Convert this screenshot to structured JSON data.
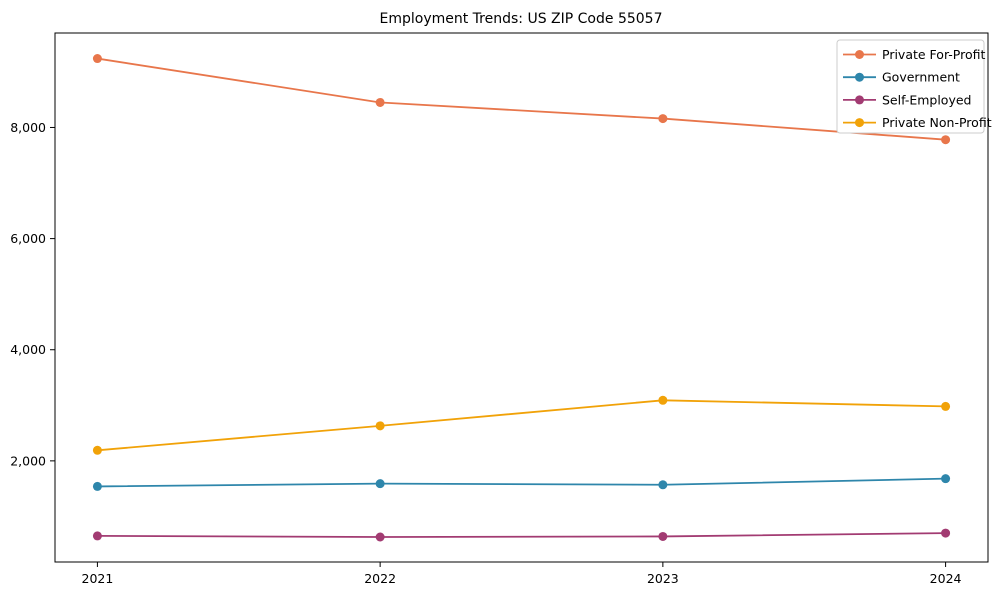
{
  "chart_data": {
    "type": "line",
    "title": "Employment Trends: US ZIP Code 55057",
    "xlabel": "",
    "ylabel": "",
    "x": [
      2021,
      2022,
      2023,
      2024
    ],
    "x_tick_labels": [
      "2021",
      "2022",
      "2023",
      "2024"
    ],
    "yticks": [
      2000,
      4000,
      6000,
      8000
    ],
    "ytick_labels": [
      "2,000",
      "4,000",
      "6,000",
      "8,000"
    ],
    "xlim": [
      2020.85,
      2024.15
    ],
    "ylim": [
      180,
      9700
    ],
    "grid": false,
    "marker": "circle",
    "legend_position": "upper right",
    "series": [
      {
        "name": "Private For-Profit",
        "color": "#E8764B",
        "values": [
          9240,
          8450,
          8160,
          7780
        ]
      },
      {
        "name": "Government",
        "color": "#2E86AB",
        "values": [
          1540,
          1590,
          1570,
          1680
        ]
      },
      {
        "name": "Self-Employed",
        "color": "#A23B72",
        "values": [
          650,
          630,
          640,
          700
        ]
      },
      {
        "name": "Private Non-Profit",
        "color": "#F1A208",
        "values": [
          2190,
          2630,
          3090,
          2980
        ]
      }
    ]
  }
}
